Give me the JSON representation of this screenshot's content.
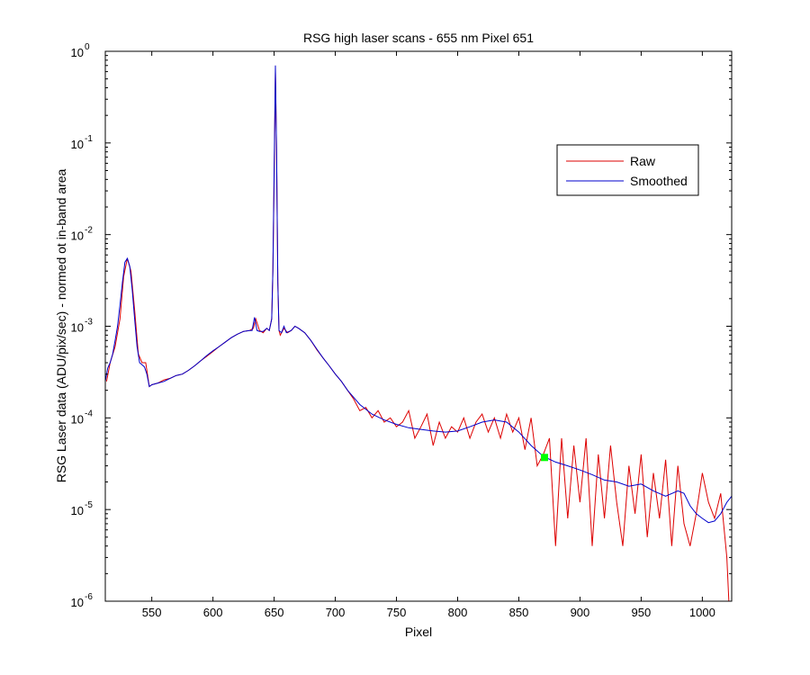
{
  "chart_data": {
    "type": "line",
    "title": "RSG high laser scans  - 655 nm    Pixel 651",
    "xlabel": "Pixel",
    "ylabel": "RSG Laser data (ADU/pix/sec) - normed ot in-band area",
    "xlim": [
      512,
      1024
    ],
    "ylim": [
      1e-06,
      1
    ],
    "yscale": "log",
    "grid": false,
    "legend_position": "top-right",
    "x_ticks": [
      550,
      600,
      650,
      700,
      750,
      800,
      850,
      900,
      950,
      1000
    ],
    "y_ticks": [
      {
        "value": 1,
        "base": "10",
        "exp": "0"
      },
      {
        "value": 0.1,
        "base": "10",
        "exp": "-1"
      },
      {
        "value": 0.01,
        "base": "10",
        "exp": "-2"
      },
      {
        "value": 0.001,
        "base": "10",
        "exp": "-3"
      },
      {
        "value": 0.0001,
        "base": "10",
        "exp": "-4"
      },
      {
        "value": 1e-05,
        "base": "10",
        "exp": "-5"
      },
      {
        "value": 1e-06,
        "base": "10",
        "exp": "-6"
      }
    ],
    "marker": {
      "x": 871,
      "y": 3.7e-05,
      "color": "#00ff00"
    },
    "series": [
      {
        "name": "Raw",
        "color": "#dd0000",
        "x": [
          513,
          516,
          520,
          524,
          527,
          530,
          533,
          536,
          539,
          542,
          545,
          548,
          550,
          555,
          560,
          565,
          570,
          575,
          580,
          585,
          590,
          595,
          600,
          605,
          610,
          615,
          620,
          625,
          630,
          633,
          635,
          638,
          641,
          644,
          646,
          648,
          649,
          650,
          651,
          652,
          653,
          654,
          655,
          658,
          661,
          664,
          667,
          670,
          675,
          680,
          685,
          690,
          695,
          700,
          705,
          710,
          715,
          720,
          725,
          730,
          735,
          740,
          745,
          750,
          755,
          760,
          765,
          770,
          775,
          780,
          785,
          790,
          795,
          800,
          805,
          810,
          815,
          820,
          825,
          830,
          835,
          840,
          845,
          850,
          855,
          860,
          865,
          870,
          875,
          880,
          885,
          890,
          895,
          900,
          905,
          910,
          915,
          920,
          925,
          930,
          935,
          940,
          945,
          950,
          955,
          960,
          965,
          970,
          975,
          980,
          985,
          990,
          995,
          1000,
          1005,
          1010,
          1015,
          1020,
          1022
        ],
        "y": [
          0.00025,
          0.0004,
          0.0006,
          0.0012,
          0.0035,
          0.0055,
          0.004,
          0.0015,
          0.0005,
          0.0004,
          0.0004,
          0.00022,
          0.00023,
          0.00024,
          0.00026,
          0.00027,
          0.00029,
          0.0003,
          0.00033,
          0.00037,
          0.00042,
          0.00047,
          0.00053,
          0.0006,
          0.00067,
          0.00075,
          0.00082,
          0.00088,
          0.0009,
          0.00095,
          0.0012,
          0.0009,
          0.00085,
          0.00095,
          0.0009,
          0.0012,
          0.004,
          0.04,
          0.6,
          0.08,
          0.003,
          0.0009,
          0.0008,
          0.00095,
          0.00085,
          0.0009,
          0.001,
          0.00095,
          0.00085,
          0.0007,
          0.00055,
          0.00045,
          0.00037,
          0.0003,
          0.00025,
          0.0002,
          0.00016,
          0.00012,
          0.00013,
          0.0001,
          0.00012,
          9e-05,
          0.0001,
          8e-05,
          9e-05,
          0.00012,
          6e-05,
          8e-05,
          0.00011,
          5e-05,
          9e-05,
          6e-05,
          8e-05,
          7e-05,
          0.0001,
          6e-05,
          9e-05,
          0.00011,
          7e-05,
          0.0001,
          6e-05,
          0.00011,
          7e-05,
          0.0001,
          4.5e-05,
          0.0001,
          3e-05,
          4e-05,
          6e-05,
          4e-06,
          6e-05,
          8e-06,
          5e-05,
          1.2e-05,
          6e-05,
          4e-06,
          4e-05,
          8e-06,
          5e-05,
          1.2e-05,
          4e-06,
          3e-05,
          9e-06,
          4e-05,
          5e-06,
          2.5e-05,
          8e-06,
          3.5e-05,
          4e-06,
          3e-05,
          7e-06,
          4e-06,
          9e-06,
          2.5e-05,
          1.2e-05,
          8e-06,
          1.5e-05,
          3e-06,
          8e-07
        ]
      },
      {
        "name": "Smoothed",
        "color": "#0000cc",
        "x": [
          512,
          514,
          516,
          518,
          520,
          522,
          524,
          526,
          528,
          530,
          532,
          534,
          536,
          538,
          540,
          542,
          544,
          546,
          548,
          550,
          555,
          560,
          565,
          570,
          575,
          580,
          585,
          590,
          595,
          600,
          605,
          610,
          615,
          620,
          625,
          630,
          632,
          634,
          636,
          638,
          641,
          644,
          646,
          648,
          649,
          650,
          651,
          652,
          653,
          654,
          656,
          658,
          660,
          664,
          667,
          670,
          675,
          680,
          685,
          690,
          695,
          700,
          705,
          710,
          720,
          730,
          740,
          750,
          760,
          770,
          780,
          790,
          800,
          810,
          820,
          830,
          840,
          850,
          860,
          870,
          880,
          890,
          900,
          910,
          920,
          930,
          940,
          950,
          960,
          970,
          980,
          985,
          990,
          995,
          1000,
          1005,
          1010,
          1015,
          1020,
          1024
        ],
        "y": [
          0.00025,
          0.00035,
          0.0004,
          0.0005,
          0.0007,
          0.001,
          0.0017,
          0.003,
          0.005,
          0.0055,
          0.0045,
          0.0025,
          0.0012,
          0.0006,
          0.0004,
          0.00038,
          0.00036,
          0.0003,
          0.00022,
          0.00023,
          0.00024,
          0.00025,
          0.00027,
          0.00029,
          0.0003,
          0.00033,
          0.00037,
          0.00042,
          0.00048,
          0.00054,
          0.0006,
          0.00067,
          0.00075,
          0.00082,
          0.00088,
          0.0009,
          0.0009,
          0.00125,
          0.0009,
          0.00088,
          0.00088,
          0.00095,
          0.0009,
          0.0012,
          0.004,
          0.05,
          0.7,
          0.08,
          0.003,
          0.0009,
          0.00085,
          0.001,
          0.00085,
          0.0009,
          0.001,
          0.00095,
          0.00085,
          0.0007,
          0.00056,
          0.00045,
          0.00037,
          0.0003,
          0.00025,
          0.0002,
          0.00014,
          0.00011,
          9.5e-05,
          8.5e-05,
          7.8e-05,
          7.5e-05,
          7.2e-05,
          7e-05,
          7.2e-05,
          8e-05,
          9e-05,
          9.5e-05,
          9e-05,
          7e-05,
          5e-05,
          3.8e-05,
          3.3e-05,
          3e-05,
          2.7e-05,
          2.4e-05,
          2.1e-05,
          2e-05,
          1.8e-05,
          1.9e-05,
          1.6e-05,
          1.4e-05,
          1.6e-05,
          1.5e-05,
          1.1e-05,
          9e-06,
          8e-06,
          7.2e-06,
          7.5e-06,
          9e-06,
          1.2e-05,
          1.4e-05
        ]
      }
    ]
  }
}
